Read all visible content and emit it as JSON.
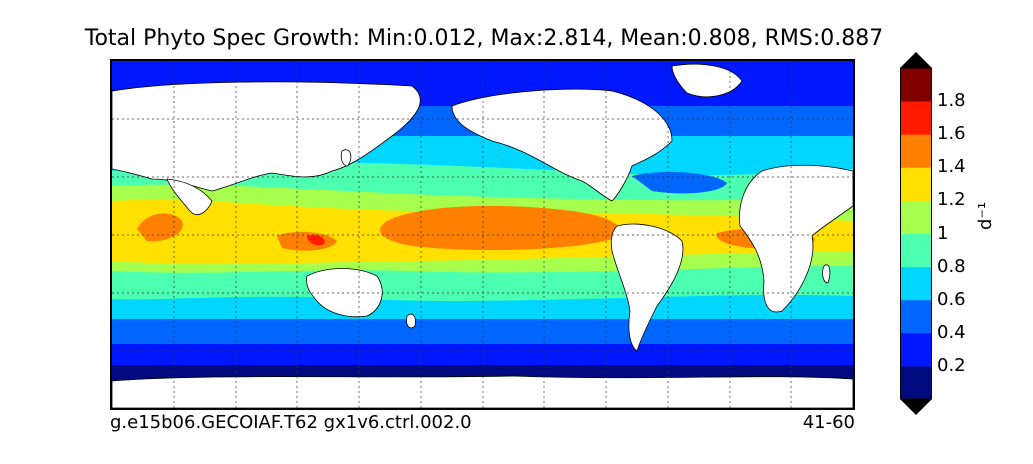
{
  "title": "Total Phyto Spec Growth: Min:0.012, Max:2.814, Mean:0.808, RMS:0.887",
  "footer": {
    "case": "g.e15b06.GECOIAF.T62 gx1v6.ctrl.002.0",
    "years": "41-60"
  },
  "colorbar": {
    "unit": "d⁻¹",
    "levels": [
      {
        "label": "0.2",
        "color": "#000a80"
      },
      {
        "label": "0.4",
        "color": "#0018ff"
      },
      {
        "label": "0.6",
        "color": "#0066ff"
      },
      {
        "label": "0.8",
        "color": "#00d6ff"
      },
      {
        "label": "1",
        "color": "#4dffb0"
      },
      {
        "label": "1.2",
        "color": "#a6ff4d"
      },
      {
        "label": "1.4",
        "color": "#ffe000"
      },
      {
        "label": "1.6",
        "color": "#ff7f00"
      },
      {
        "label": "1.8",
        "color": "#ff1a00"
      },
      {
        "label": "",
        "color": "#800000"
      }
    ],
    "under_color": "#000000",
    "over_color": "#000000"
  },
  "map": {
    "projection": "cylindrical",
    "grid": "dashed",
    "land_color": "#ffffff"
  }
}
